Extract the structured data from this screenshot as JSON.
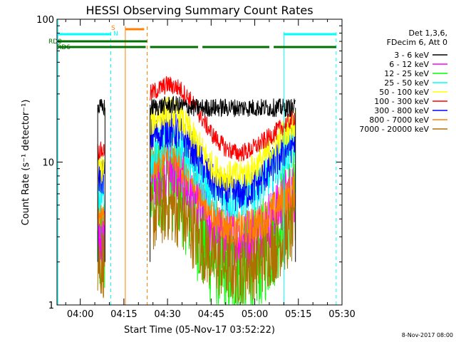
{
  "chart_data": {
    "type": "line",
    "title": "HESSI Observing Summary Count Rates",
    "xlabel": "Start Time (05-Nov-17 03:52:22)",
    "ylabel": "Count Rate (s⁻¹ detector⁻¹)",
    "yscale": "log",
    "ylim": [
      1,
      100
    ],
    "xlim_minutes_after_0352": [
      0,
      98
    ],
    "x_ticks": [
      "04:00",
      "04:15",
      "04:30",
      "04:45",
      "05:00",
      "05:15",
      "05:30"
    ],
    "y_ticks": [
      "1",
      "10",
      "100"
    ],
    "grid": false,
    "legend_position": "right",
    "legend_header": [
      "Det 1,3,6,",
      "FDecim 6, Att 0"
    ],
    "series": [
      {
        "name": "3 - 6 keV",
        "color": "#000000",
        "values": [
          [
            14,
            24
          ],
          [
            16,
            24
          ],
          [
            32,
            24
          ],
          [
            38,
            25
          ],
          [
            42,
            25
          ],
          [
            46,
            24
          ],
          [
            50,
            24
          ],
          [
            54,
            24
          ],
          [
            58,
            24
          ],
          [
            62,
            24
          ],
          [
            66,
            24
          ],
          [
            70,
            24
          ],
          [
            74,
            24
          ],
          [
            78,
            24
          ],
          [
            82,
            24
          ]
        ]
      },
      {
        "name": "6 - 12 keV",
        "color": "#ff00ff",
        "values": [
          [
            14,
            3
          ],
          [
            16,
            3
          ],
          [
            32,
            7
          ],
          [
            38,
            9
          ],
          [
            42,
            8
          ],
          [
            46,
            6
          ],
          [
            50,
            4.5
          ],
          [
            54,
            3.3
          ],
          [
            58,
            3.0
          ],
          [
            62,
            2.9
          ],
          [
            66,
            3.0
          ],
          [
            70,
            3.4
          ],
          [
            74,
            4.2
          ],
          [
            78,
            5.5
          ],
          [
            82,
            6.2
          ]
        ]
      },
      {
        "name": "12 - 25 keV",
        "color": "#00ff00",
        "values": [
          [
            14,
            2.5
          ],
          [
            16,
            2.6
          ],
          [
            32,
            6
          ],
          [
            38,
            8.5
          ],
          [
            42,
            7
          ],
          [
            46,
            4.5
          ],
          [
            50,
            3
          ],
          [
            54,
            2.2
          ],
          [
            58,
            1.8
          ],
          [
            62,
            1.6
          ],
          [
            66,
            1.8
          ],
          [
            70,
            2.2
          ],
          [
            74,
            3
          ],
          [
            78,
            4.5
          ],
          [
            82,
            5.5
          ]
        ]
      },
      {
        "name": "25 - 50 keV",
        "color": "#00ffff",
        "values": [
          [
            14,
            6
          ],
          [
            16,
            6
          ],
          [
            32,
            11
          ],
          [
            38,
            14
          ],
          [
            42,
            13
          ],
          [
            46,
            10
          ],
          [
            50,
            7.5
          ],
          [
            54,
            6
          ],
          [
            58,
            5.5
          ],
          [
            62,
            5.5
          ],
          [
            66,
            5.8
          ],
          [
            70,
            6.8
          ],
          [
            74,
            8.5
          ],
          [
            78,
            11
          ],
          [
            82,
            13
          ]
        ]
      },
      {
        "name": "50 - 100 keV",
        "color": "#ffff00",
        "values": [
          [
            14,
            9
          ],
          [
            16,
            9
          ],
          [
            32,
            19
          ],
          [
            38,
            23
          ],
          [
            42,
            21
          ],
          [
            46,
            16
          ],
          [
            50,
            12
          ],
          [
            54,
            9
          ],
          [
            58,
            8
          ],
          [
            62,
            8
          ],
          [
            66,
            8.5
          ],
          [
            70,
            10
          ],
          [
            74,
            12.5
          ],
          [
            78,
            16
          ],
          [
            82,
            19
          ]
        ]
      },
      {
        "name": "100 - 300 keV",
        "color": "#ff0000",
        "values": [
          [
            14,
            12
          ],
          [
            16,
            12
          ],
          [
            32,
            30
          ],
          [
            38,
            35
          ],
          [
            42,
            33
          ],
          [
            46,
            27
          ],
          [
            50,
            20
          ],
          [
            54,
            15
          ],
          [
            58,
            12.5
          ],
          [
            62,
            11.5
          ],
          [
            66,
            12
          ],
          [
            70,
            13.5
          ],
          [
            74,
            15.5
          ],
          [
            78,
            18
          ],
          [
            82,
            21
          ]
        ]
      },
      {
        "name": "300 - 800 keV",
        "color": "#0000ff",
        "values": [
          [
            14,
            8
          ],
          [
            16,
            8
          ],
          [
            32,
            15
          ],
          [
            38,
            17
          ],
          [
            42,
            16
          ],
          [
            46,
            13
          ],
          [
            50,
            9.5
          ],
          [
            54,
            7
          ],
          [
            58,
            6.2
          ],
          [
            62,
            6
          ],
          [
            66,
            6.3
          ],
          [
            70,
            7.5
          ],
          [
            74,
            9.5
          ],
          [
            78,
            12
          ],
          [
            82,
            14
          ]
        ]
      },
      {
        "name": "800 - 7000 keV",
        "color": "#ff8000",
        "values": [
          [
            14,
            4.5
          ],
          [
            16,
            4.5
          ],
          [
            32,
            9.5
          ],
          [
            38,
            11
          ],
          [
            42,
            10
          ],
          [
            46,
            7.5
          ],
          [
            50,
            5.5
          ],
          [
            54,
            4.2
          ],
          [
            58,
            3.6
          ],
          [
            62,
            3.4
          ],
          [
            66,
            3.5
          ],
          [
            70,
            3.8
          ],
          [
            74,
            4.5
          ],
          [
            78,
            5.5
          ],
          [
            82,
            6.5
          ]
        ]
      },
      {
        "name": "7000 - 20000 keV",
        "color": "#b07000",
        "values": [
          [
            14,
            2
          ],
          [
            16,
            2
          ],
          [
            32,
            4
          ],
          [
            38,
            5
          ],
          [
            42,
            4.5
          ],
          [
            46,
            3.4
          ],
          [
            50,
            2.6
          ],
          [
            54,
            2.1
          ],
          [
            58,
            1.9
          ],
          [
            62,
            1.8
          ],
          [
            66,
            1.9
          ],
          [
            70,
            2.1
          ],
          [
            74,
            2.5
          ],
          [
            78,
            3
          ],
          [
            82,
            3.5
          ]
        ]
      }
    ],
    "flag_labels": [
      "S",
      "N",
      "RD0",
      "RD6"
    ],
    "flag_colors": {
      "S": "#ff8000",
      "N": "#00ffff",
      "RD": "#007000"
    },
    "footer_date": "8-Nov-2017 08:00"
  }
}
